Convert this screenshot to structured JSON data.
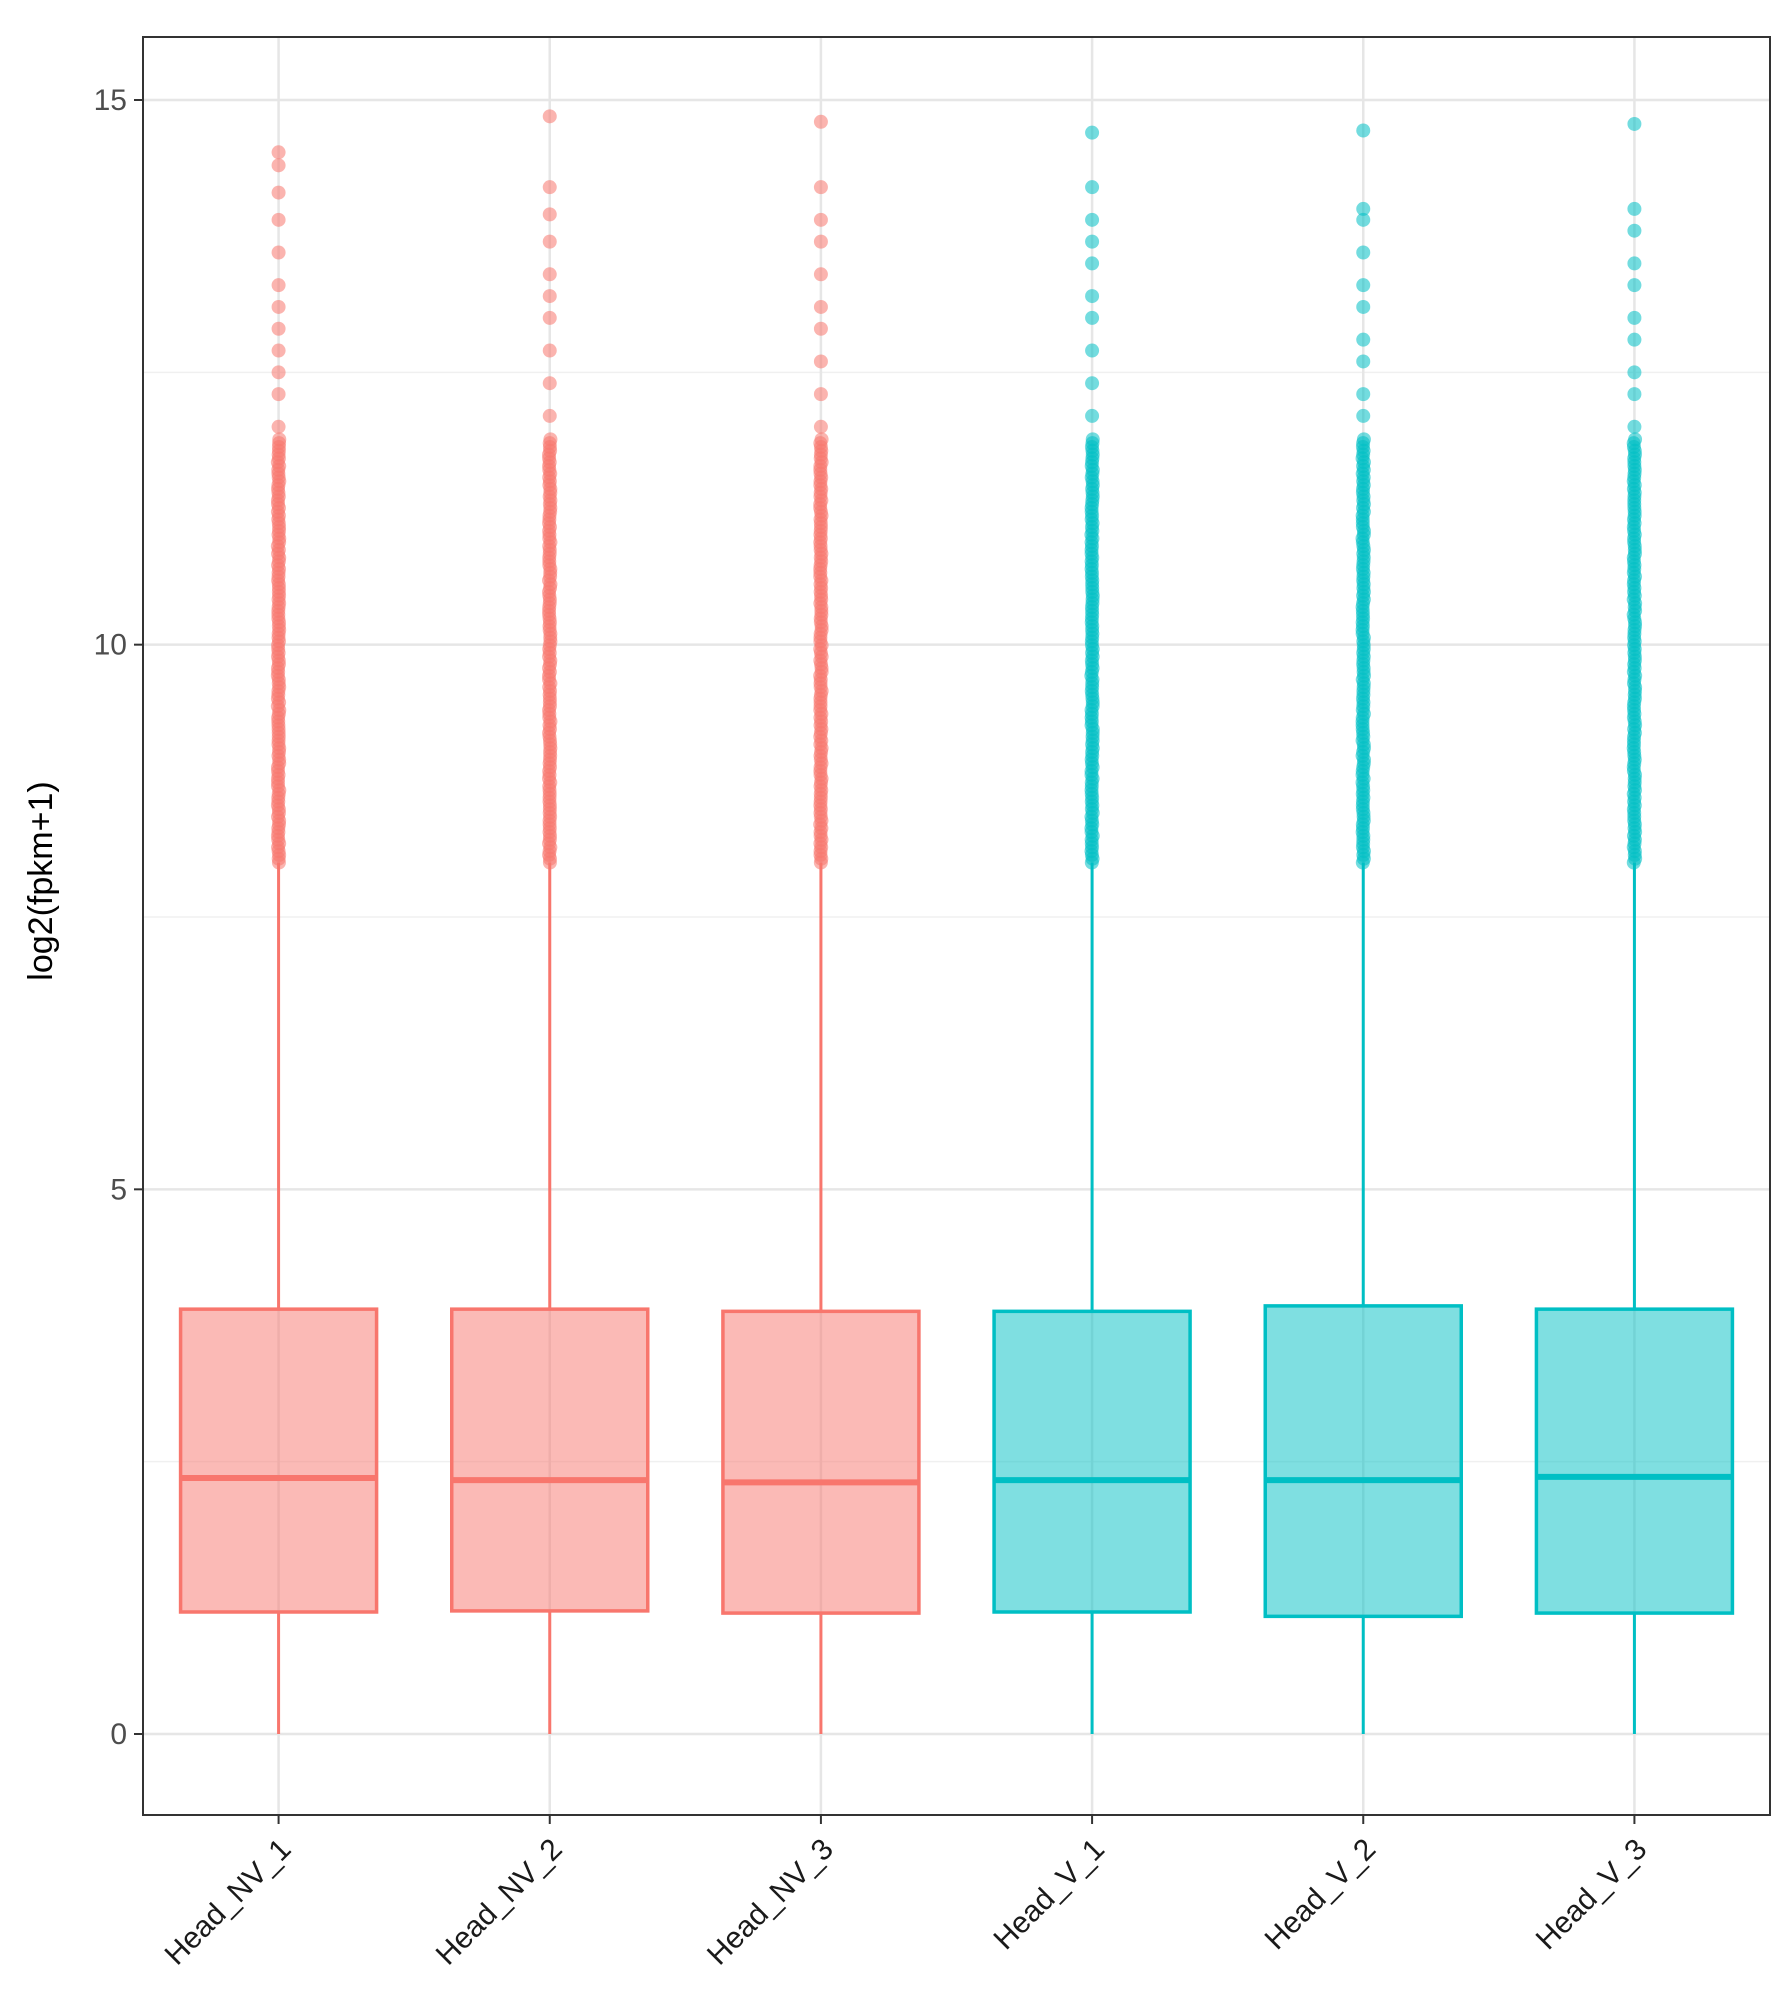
{
  "chart_data": {
    "type": "boxplot",
    "title": "",
    "xlabel": "",
    "ylabel": "log2(fpkm+1)",
    "ylim": [
      -0.75,
      15.6
    ],
    "y_ticks": [
      0,
      5,
      10,
      15
    ],
    "grid": true,
    "categories": [
      "Head_NV_1",
      "Head_NV_2",
      "Head_NV_3",
      "Head_V_1",
      "Head_V_2",
      "Head_V_3"
    ],
    "groups": [
      "NV",
      "NV",
      "NV",
      "V",
      "V",
      "V"
    ],
    "colors": {
      "NV": "#F8766D",
      "V": "#00BFC4"
    },
    "boxes": [
      {
        "name": "Head_NV_1",
        "min": 0,
        "q1": 1.12,
        "median": 2.35,
        "q3": 3.9,
        "whisker_high": 8.0,
        "outliers_range": [
          8.0,
          11.9
        ],
        "outliers_sparse": [
          12.0,
          12.3,
          12.5,
          12.7,
          12.9,
          13.1,
          13.3,
          13.6,
          13.9,
          14.15,
          14.4,
          14.52
        ]
      },
      {
        "name": "Head_NV_2",
        "min": 0,
        "q1": 1.13,
        "median": 2.33,
        "q3": 3.9,
        "whisker_high": 8.0,
        "outliers_range": [
          8.0,
          11.9
        ],
        "outliers_sparse": [
          12.1,
          12.4,
          12.7,
          13.0,
          13.2,
          13.4,
          13.7,
          13.95,
          14.2,
          14.85
        ]
      },
      {
        "name": "Head_NV_3",
        "min": 0,
        "q1": 1.11,
        "median": 2.31,
        "q3": 3.88,
        "whisker_high": 8.0,
        "outliers_range": [
          8.0,
          11.9
        ],
        "outliers_sparse": [
          12.0,
          12.3,
          12.6,
          12.9,
          13.1,
          13.4,
          13.7,
          13.9,
          14.2,
          14.8
        ]
      },
      {
        "name": "Head_V_1",
        "min": 0,
        "q1": 1.12,
        "median": 2.33,
        "q3": 3.88,
        "whisker_high": 8.0,
        "outliers_range": [
          8.0,
          11.9
        ],
        "outliers_sparse": [
          12.1,
          12.4,
          12.7,
          13.0,
          13.2,
          13.5,
          13.7,
          13.9,
          14.2,
          14.7
        ]
      },
      {
        "name": "Head_V_2",
        "min": 0,
        "q1": 1.08,
        "median": 2.33,
        "q3": 3.93,
        "whisker_high": 8.0,
        "outliers_range": [
          8.0,
          11.9
        ],
        "outliers_sparse": [
          12.1,
          12.3,
          12.6,
          12.8,
          13.1,
          13.3,
          13.6,
          13.9,
          14.0,
          14.72
        ]
      },
      {
        "name": "Head_V_3",
        "min": 0,
        "q1": 1.11,
        "median": 2.36,
        "q3": 3.9,
        "whisker_high": 8.0,
        "outliers_range": [
          8.0,
          11.9
        ],
        "outliers_sparse": [
          12.0,
          12.3,
          12.5,
          12.8,
          13.0,
          13.3,
          13.5,
          13.8,
          14.0,
          14.78
        ]
      }
    ]
  }
}
